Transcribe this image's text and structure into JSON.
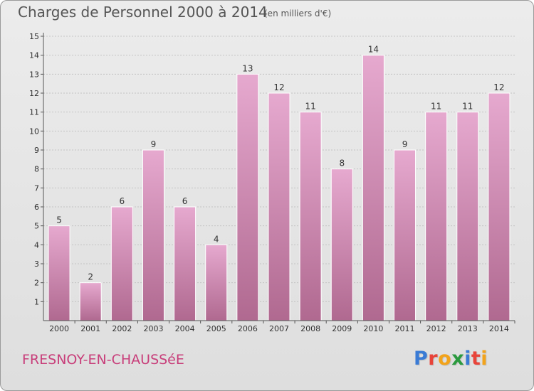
{
  "header": {
    "title": "Charges de Personnel 2000 à 2014",
    "subtitle": "(en milliers d'€)"
  },
  "footer": {
    "commune": "FRESNOY-EN-CHAUSSéE",
    "logo_letters": [
      "P",
      "r",
      "o",
      "x",
      "i",
      "t",
      "i"
    ],
    "logo_colors": [
      "#3a7bd5",
      "#e8443a",
      "#f2a31b",
      "#2a9a3e",
      "#3a7bd5",
      "#e8443a",
      "#f2a31b"
    ]
  },
  "colors": {
    "bar_top": "#e6a9cf",
    "bar_bottom": "#b06990",
    "bar_edge": "#ffffff",
    "grid": "#c4c4c4",
    "axis": "#555555",
    "text": "#333333"
  },
  "chart_data": {
    "type": "bar",
    "title": "Charges de Personnel 2000 à 2014",
    "subtitle": "(en milliers d'€)",
    "categories": [
      "2000",
      "2001",
      "2002",
      "2003",
      "2004",
      "2005",
      "2006",
      "2007",
      "2008",
      "2009",
      "2010",
      "2011",
      "2012",
      "2013",
      "2014"
    ],
    "values": [
      5,
      2,
      6,
      9,
      6,
      4,
      13,
      12,
      11,
      8,
      14,
      9,
      11,
      11,
      12
    ],
    "data_labels": [
      "5",
      "2",
      "6",
      "9",
      "6",
      "4",
      "13",
      "12",
      "11",
      "8",
      "14",
      "9",
      "11",
      "11",
      "12"
    ],
    "y_ticks": [
      "1",
      "2",
      "3",
      "4",
      "5",
      "6",
      "7",
      "8",
      "9",
      "10",
      "11",
      "12",
      "13",
      "14",
      "15"
    ],
    "ylim": [
      1,
      15
    ],
    "xlabel": "",
    "ylabel": "",
    "grid": true,
    "legend": "none"
  }
}
